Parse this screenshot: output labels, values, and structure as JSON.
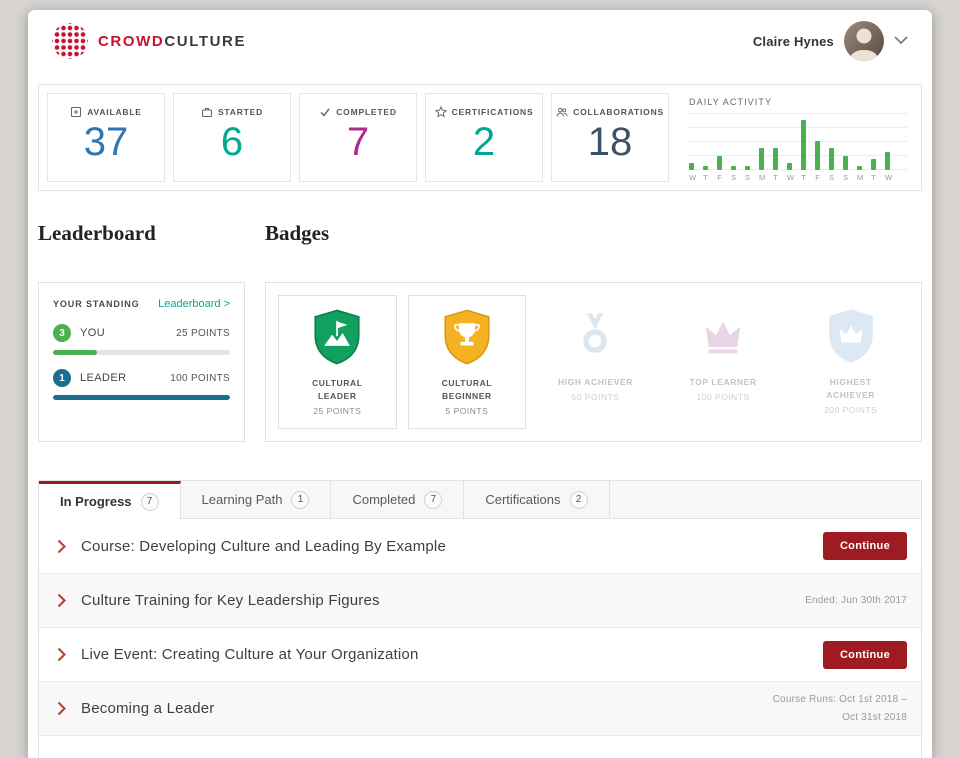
{
  "header": {
    "brand": {
      "part1": "CROWD",
      "part2": "CULTURE"
    },
    "user_name": "Claire Hynes"
  },
  "stats": {
    "cards": [
      {
        "label": "AVAILABLE",
        "value": "37",
        "color": "#2e75b5",
        "icon": "available-icon"
      },
      {
        "label": "STARTED",
        "value": "6",
        "color": "#00a88f",
        "icon": "started-icon"
      },
      {
        "label": "COMPLETED",
        "value": "7",
        "color": "#ab2b90",
        "icon": "completed-check-icon"
      },
      {
        "label": "CERTIFICATIONS",
        "value": "2",
        "color": "#00a88f",
        "icon": "star-icon"
      },
      {
        "label": "COLLABORATIONS",
        "value": "18",
        "color": "#3d5266",
        "icon": "people-icon"
      }
    ]
  },
  "chart_data": {
    "type": "bar",
    "title": "DAILY ACTIVITY",
    "categories": [
      "W",
      "T",
      "F",
      "S",
      "S",
      "M",
      "T",
      "W",
      "T",
      "F",
      "S",
      "S",
      "M",
      "T",
      "W"
    ],
    "values": [
      2,
      1,
      4,
      1,
      1,
      6,
      6,
      2,
      14,
      8,
      6,
      4,
      1,
      3,
      5
    ],
    "xlabel": "",
    "ylabel": "",
    "ylim": [
      0,
      15
    ],
    "grid": true,
    "legend": false,
    "bar_color": "#4caf50"
  },
  "sections": {
    "leaderboard_heading": "Leaderboard",
    "badges_heading": "Badges"
  },
  "leaderboard": {
    "standing_label": "YOUR STANDING",
    "link_label": "Leaderboard >",
    "rows": [
      {
        "rank": "3",
        "name": "YOU",
        "points": "25 POINTS",
        "progress": 25,
        "color": "#4caf50"
      },
      {
        "rank": "1",
        "name": "LEADER",
        "points": "100 POINTS",
        "progress": 100,
        "color": "#19708e"
      }
    ]
  },
  "badges": {
    "items": [
      {
        "title": "CULTURAL LEADER",
        "points": "25 POINTS",
        "earned": true,
        "icon": "flag-mountain-shield"
      },
      {
        "title": "CULTURAL BEGINNER",
        "points": "5 POINTS",
        "earned": true,
        "icon": "trophy-shield"
      },
      {
        "title": "HIGH ACHIEVER",
        "points": "50 POINTS",
        "earned": false,
        "icon": "medal"
      },
      {
        "title": "TOP LEARNER",
        "points": "100 POINTS",
        "earned": false,
        "icon": "crown"
      },
      {
        "title": "HIGHEST ACHIEVER",
        "points": "200 POINTS",
        "earned": false,
        "icon": "crown-shield"
      }
    ]
  },
  "tabs": [
    {
      "label": "In Progress",
      "count": "7",
      "active": true
    },
    {
      "label": "Learning Path",
      "count": "1",
      "active": false
    },
    {
      "label": "Completed",
      "count": "7",
      "active": false
    },
    {
      "label": "Certifications",
      "count": "2",
      "active": false
    }
  ],
  "course_rows": [
    {
      "title": "Course: Developing Culture and Leading By Example",
      "button": "Continue"
    },
    {
      "title": "Culture Training for Key Leadership Figures",
      "meta": "Ended: Jun 30th 2017"
    },
    {
      "title": "Live Event: Creating Culture at Your Organization",
      "button": "Continue"
    },
    {
      "title": "Becoming a Leader",
      "meta": "Course Runs: Oct 1st 2018 –",
      "meta2": "Oct 31st 2018"
    }
  ],
  "colors": {
    "brand_red": "#c41230",
    "button_red": "#9e1c21",
    "link_teal": "#00a88f",
    "bar_green": "#4caf50",
    "leader_bar_blue": "#19708e"
  }
}
